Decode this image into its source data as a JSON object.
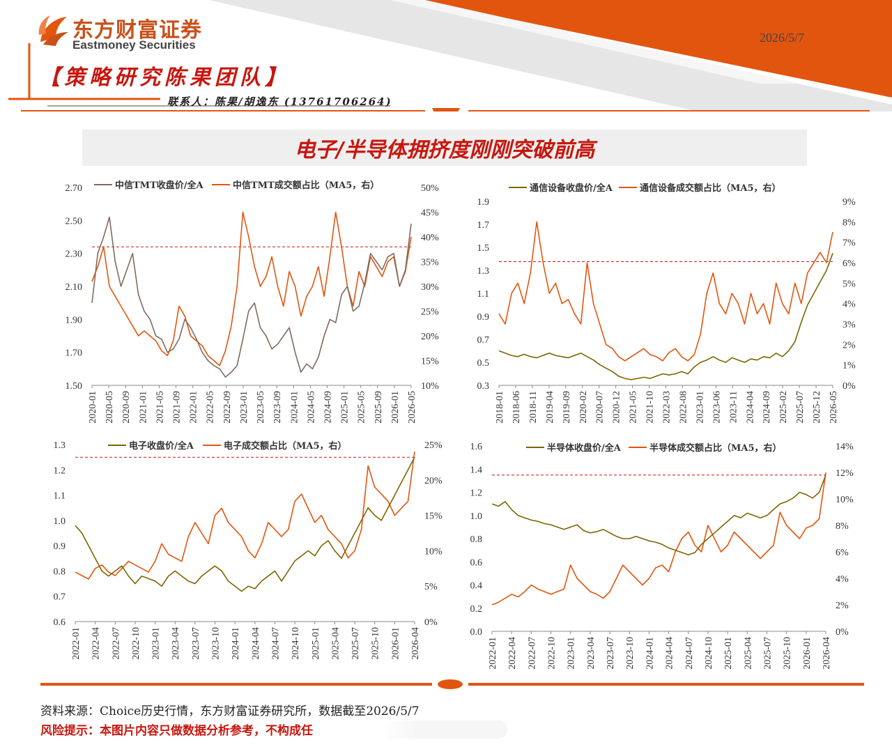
{
  "header": {
    "logo_cn": "东方财富证券",
    "logo_en": "Eastmoney Securities",
    "date": "2026/5/7",
    "team": "【策略研究陈果团队】",
    "contact": "联系人：陈果/胡逸东  (13761706264)"
  },
  "title": "电子/半导体拥挤度刚刚突破前高",
  "footer": {
    "source": "资料来源：Choice历史行情，东方财富证券研究所，数据截至2026/5/7",
    "risk": "风险提示：本图片内容只做数据分析参考，不构成任"
  },
  "colors": {
    "accent": "#e2550f",
    "brand_red": "#c8160e",
    "tmt_price": "#7f6a60",
    "olive_price": "#7d6400",
    "turnover": "#e2550f",
    "ref_line": "#c8160e"
  },
  "chart_data": [
    {
      "type": "line",
      "id": "tmt",
      "series": [
        {
          "name": "中信TMT收盘价/全A",
          "axis": "left",
          "values": [
            2.0,
            2.3,
            2.4,
            2.52,
            2.25,
            2.1,
            2.2,
            2.3,
            2.05,
            1.95,
            1.9,
            1.8,
            1.78,
            1.7,
            1.72,
            1.78,
            1.9,
            1.85,
            1.78,
            1.7,
            1.65,
            1.62,
            1.6,
            1.55,
            1.58,
            1.62,
            1.78,
            1.95,
            2.0,
            1.85,
            1.8,
            1.72,
            1.75,
            1.8,
            1.85,
            1.7,
            1.58,
            1.63,
            1.6,
            1.67,
            1.8,
            1.9,
            1.88,
            2.05,
            2.1,
            1.95,
            1.98,
            2.12,
            2.3,
            2.25,
            2.2,
            2.28,
            2.3,
            2.1,
            2.2,
            2.48
          ]
        },
        {
          "name": "中信TMT成交额占比（MA5，右）",
          "axis": "right",
          "values": [
            0.31,
            0.34,
            0.38,
            0.3,
            0.28,
            0.26,
            0.24,
            0.22,
            0.2,
            0.21,
            0.2,
            0.19,
            0.17,
            0.16,
            0.19,
            0.26,
            0.24,
            0.2,
            0.19,
            0.18,
            0.16,
            0.15,
            0.14,
            0.17,
            0.22,
            0.3,
            0.45,
            0.4,
            0.34,
            0.3,
            0.32,
            0.36,
            0.3,
            0.26,
            0.33,
            0.3,
            0.24,
            0.28,
            0.3,
            0.34,
            0.28,
            0.36,
            0.45,
            0.38,
            0.3,
            0.26,
            0.33,
            0.3,
            0.36,
            0.34,
            0.32,
            0.35,
            0.36,
            0.3,
            0.33,
            0.4
          ]
        }
      ],
      "x_tick_labels": [
        "2020-01",
        "2020-05",
        "2020-09",
        "2021-01",
        "2021-05",
        "2021-09",
        "2022-01",
        "2022-05",
        "2022-09",
        "2023-01",
        "2023-05",
        "2023-09",
        "2024-01",
        "2024-05",
        "2024-09",
        "2025-01",
        "2025-05",
        "2025-09",
        "2026-01",
        "2026-05"
      ],
      "ylim_left": [
        1.5,
        2.7
      ],
      "yticks_left": [
        "1.50",
        "1.70",
        "1.90",
        "2.10",
        "2.30",
        "2.50",
        "2.70"
      ],
      "ylim_right": [
        0.1,
        0.5
      ],
      "yticks_right": [
        "10%",
        "15%",
        "20%",
        "25%",
        "30%",
        "35%",
        "40%",
        "45%",
        "50%"
      ],
      "ref_line_right": 0.38,
      "legend": "top",
      "grid": false
    },
    {
      "type": "line",
      "id": "telecom",
      "series": [
        {
          "name": "通信设备收盘价/全A",
          "axis": "left",
          "values": [
            0.6,
            0.58,
            0.56,
            0.55,
            0.57,
            0.55,
            0.54,
            0.56,
            0.58,
            0.56,
            0.55,
            0.54,
            0.56,
            0.58,
            0.55,
            0.52,
            0.48,
            0.45,
            0.42,
            0.38,
            0.36,
            0.35,
            0.36,
            0.37,
            0.36,
            0.38,
            0.4,
            0.39,
            0.4,
            0.42,
            0.4,
            0.46,
            0.5,
            0.52,
            0.55,
            0.52,
            0.5,
            0.54,
            0.52,
            0.5,
            0.53,
            0.52,
            0.55,
            0.54,
            0.58,
            0.55,
            0.6,
            0.68,
            0.85,
            1.0,
            1.1,
            1.2,
            1.3,
            1.45
          ]
        },
        {
          "name": "通信设备成交额占比（MA5，右）",
          "axis": "right",
          "values": [
            0.035,
            0.03,
            0.045,
            0.05,
            0.04,
            0.055,
            0.08,
            0.06,
            0.045,
            0.05,
            0.04,
            0.042,
            0.035,
            0.03,
            0.06,
            0.04,
            0.03,
            0.02,
            0.018,
            0.014,
            0.012,
            0.014,
            0.016,
            0.018,
            0.015,
            0.014,
            0.012,
            0.016,
            0.018,
            0.014,
            0.012,
            0.015,
            0.025,
            0.045,
            0.055,
            0.04,
            0.035,
            0.045,
            0.04,
            0.03,
            0.045,
            0.035,
            0.04,
            0.03,
            0.05,
            0.04,
            0.035,
            0.05,
            0.04,
            0.055,
            0.06,
            0.065,
            0.06,
            0.075
          ]
        }
      ],
      "x_tick_labels": [
        "2018-01",
        "2018-06",
        "2018-11",
        "2019-04",
        "2019-09",
        "2020-02",
        "2020-07",
        "2020-12",
        "2021-05",
        "2021-10",
        "2022-03",
        "2022-08",
        "2023-01",
        "2023-06",
        "2023-11",
        "2024-04",
        "2024-09",
        "2025-02",
        "2025-07",
        "2025-12",
        "2026-05"
      ],
      "ylim_left": [
        0.3,
        1.9
      ],
      "yticks_left": [
        "0.3",
        "0.5",
        "0.7",
        "0.9",
        "1.1",
        "1.3",
        "1.5",
        "1.7",
        "1.9"
      ],
      "ylim_right": [
        0,
        0.09
      ],
      "yticks_right": [
        "0%",
        "1%",
        "2%",
        "3%",
        "4%",
        "5%",
        "6%",
        "7%",
        "8%",
        "9%"
      ],
      "ref_line_right": 0.0605,
      "legend": "top",
      "grid": false
    },
    {
      "type": "line",
      "id": "electronics",
      "series": [
        {
          "name": "电子收盘价/全A",
          "axis": "left",
          "values": [
            0.98,
            0.95,
            0.9,
            0.85,
            0.8,
            0.78,
            0.8,
            0.82,
            0.78,
            0.75,
            0.78,
            0.77,
            0.76,
            0.74,
            0.78,
            0.8,
            0.78,
            0.76,
            0.75,
            0.78,
            0.8,
            0.82,
            0.8,
            0.76,
            0.74,
            0.72,
            0.74,
            0.73,
            0.76,
            0.78,
            0.8,
            0.76,
            0.8,
            0.84,
            0.86,
            0.88,
            0.86,
            0.9,
            0.92,
            0.88,
            0.85,
            0.9,
            0.95,
            1.0,
            1.05,
            1.02,
            1.0,
            1.05,
            1.1,
            1.15,
            1.2,
            1.25
          ]
        },
        {
          "name": "电子成交额占比（MA5，右）",
          "axis": "right",
          "values": [
            0.07,
            0.065,
            0.06,
            0.075,
            0.08,
            0.07,
            0.065,
            0.075,
            0.085,
            0.08,
            0.075,
            0.07,
            0.085,
            0.11,
            0.095,
            0.09,
            0.085,
            0.12,
            0.14,
            0.125,
            0.11,
            0.15,
            0.16,
            0.14,
            0.13,
            0.12,
            0.1,
            0.09,
            0.11,
            0.14,
            0.13,
            0.12,
            0.13,
            0.17,
            0.18,
            0.16,
            0.14,
            0.15,
            0.13,
            0.12,
            0.11,
            0.09,
            0.1,
            0.13,
            0.22,
            0.19,
            0.18,
            0.17,
            0.15,
            0.16,
            0.17,
            0.24
          ]
        }
      ],
      "x_tick_labels": [
        "2022-01",
        "2022-04",
        "2022-07",
        "2022-10",
        "2023-01",
        "2023-04",
        "2023-07",
        "2023-10",
        "2024-01",
        "2024-04",
        "2024-07",
        "2024-10",
        "2025-01",
        "2025-04",
        "2025-07",
        "2025-10",
        "2026-01",
        "2026-04"
      ],
      "ylim_left": [
        0.6,
        1.3
      ],
      "yticks_left": [
        "0.6",
        "0.7",
        "0.8",
        "0.9",
        "1.0",
        "1.1",
        "1.2",
        "1.3"
      ],
      "ylim_right": [
        0,
        0.25
      ],
      "yticks_right": [
        "0%",
        "5%",
        "10%",
        "15%",
        "20%",
        "25%"
      ],
      "ref_line_right": 0.232,
      "legend": "top",
      "grid": false
    },
    {
      "type": "line",
      "id": "semiconductor",
      "series": [
        {
          "name": "半导体收盘价/全A",
          "axis": "left",
          "values": [
            1.1,
            1.08,
            1.12,
            1.05,
            1.0,
            0.98,
            0.96,
            0.95,
            0.93,
            0.92,
            0.9,
            0.88,
            0.9,
            0.92,
            0.87,
            0.85,
            0.86,
            0.88,
            0.85,
            0.82,
            0.8,
            0.8,
            0.82,
            0.8,
            0.78,
            0.77,
            0.75,
            0.72,
            0.7,
            0.68,
            0.66,
            0.68,
            0.75,
            0.8,
            0.85,
            0.9,
            0.95,
            1.0,
            0.98,
            1.02,
            1.0,
            0.98,
            1.0,
            1.05,
            1.1,
            1.12,
            1.15,
            1.2,
            1.18,
            1.15,
            1.2,
            1.35
          ]
        },
        {
          "name": "半导体成交额占比（MA5，右）",
          "axis": "right",
          "values": [
            0.02,
            0.022,
            0.025,
            0.028,
            0.026,
            0.03,
            0.035,
            0.032,
            0.03,
            0.028,
            0.03,
            0.032,
            0.05,
            0.04,
            0.035,
            0.03,
            0.028,
            0.025,
            0.03,
            0.04,
            0.05,
            0.045,
            0.04,
            0.035,
            0.04,
            0.048,
            0.05,
            0.045,
            0.06,
            0.07,
            0.075,
            0.065,
            0.06,
            0.08,
            0.07,
            0.06,
            0.065,
            0.075,
            0.07,
            0.065,
            0.06,
            0.055,
            0.06,
            0.065,
            0.09,
            0.08,
            0.075,
            0.07,
            0.078,
            0.08,
            0.085,
            0.12
          ]
        }
      ],
      "x_tick_labels": [
        "2022-01",
        "2022-04",
        "2022-07",
        "2022-10",
        "2023-01",
        "2023-04",
        "2023-07",
        "2023-10",
        "2024-01",
        "2024-04",
        "2024-07",
        "2024-10",
        "2025-01",
        "2025-04",
        "2025-07",
        "2025-10",
        "2026-01",
        "2026-04"
      ],
      "ylim_left": [
        0.0,
        1.6
      ],
      "yticks_left": [
        "0.0",
        "0.2",
        "0.4",
        "0.6",
        "0.8",
        "1.0",
        "1.2",
        "1.4",
        "1.6"
      ],
      "ylim_right": [
        0,
        0.14
      ],
      "yticks_right": [
        "0%",
        "2%",
        "4%",
        "6%",
        "8%",
        "10%",
        "12%",
        "14%"
      ],
      "ref_line_right": 0.118,
      "legend": "top",
      "grid": false
    }
  ]
}
